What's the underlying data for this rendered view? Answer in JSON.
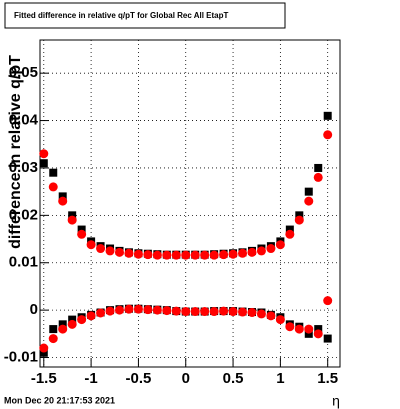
{
  "chart_data": {
    "type": "scatter",
    "title": "Fitted difference in relative q/pT for Global Rec All EtapT",
    "y_label": "difference in relative q/pT",
    "x_label": "η",
    "footer": "Mon Dec 20 21:17:53 2021",
    "xlim": [
      -1.54,
      1.63
    ],
    "ylim": [
      -0.012,
      0.057
    ],
    "xticks": [
      -1.5,
      -1,
      -0.5,
      0,
      0.5,
      1,
      1.5
    ],
    "yticks": [
      -0.01,
      0,
      0.01,
      0.02,
      0.03,
      0.04,
      0.05
    ],
    "grid": true,
    "x": [
      -1.5,
      -1.4,
      -1.3,
      -1.2,
      -1.1,
      -1.0,
      -0.9,
      -0.8,
      -0.7,
      -0.6,
      -0.5,
      -0.4,
      -0.3,
      -0.2,
      -0.1,
      0,
      0.1,
      0.2,
      0.3,
      0.4,
      0.5,
      0.6,
      0.7,
      0.8,
      0.9,
      1.0,
      1.1,
      1.2,
      1.3,
      1.4,
      1.5
    ],
    "series": [
      {
        "color": "#000000",
        "marker": "square",
        "values": [
          0.031,
          0.029,
          0.024,
          0.02,
          0.017,
          0.0145,
          0.0135,
          0.013,
          0.0125,
          0.0122,
          0.012,
          0.0119,
          0.0118,
          0.0117,
          0.0117,
          0.0117,
          0.0117,
          0.0117,
          0.0118,
          0.0119,
          0.012,
          0.0122,
          0.0125,
          0.013,
          0.0135,
          0.0145,
          0.017,
          0.02,
          0.025,
          0.03,
          0.041
        ]
      },
      {
        "color": "#ff0000",
        "marker": "circle",
        "values": [
          0.033,
          0.026,
          0.023,
          0.019,
          0.016,
          0.0138,
          0.013,
          0.0125,
          0.0122,
          0.012,
          0.0118,
          0.0117,
          0.0116,
          0.0116,
          0.0116,
          0.0116,
          0.0116,
          0.0116,
          0.0116,
          0.0117,
          0.0118,
          0.012,
          0.0122,
          0.0125,
          0.013,
          0.0138,
          0.016,
          0.019,
          0.023,
          0.028,
          0.037
        ]
      },
      {
        "color": "#000000",
        "marker": "square",
        "values": [
          -0.009,
          -0.004,
          -0.003,
          -0.002,
          -0.0015,
          -0.001,
          -0.0005,
          0,
          0.0002,
          0.0003,
          0.0003,
          0.0002,
          0.0001,
          0,
          -0.0002,
          -0.0003,
          -0.0003,
          -0.0003,
          -0.0002,
          -0.0002,
          -0.0002,
          -0.0003,
          -0.0004,
          -0.0005,
          -0.001,
          -0.0015,
          -0.003,
          -0.0035,
          -0.005,
          -0.004,
          -0.006
        ]
      },
      {
        "color": "#ff0000",
        "marker": "circle",
        "values": [
          -0.008,
          -0.006,
          -0.004,
          -0.003,
          -0.002,
          -0.0012,
          -0.0006,
          -0.0002,
          0,
          0.0002,
          0.0002,
          0.0001,
          0,
          -0.0001,
          -0.0002,
          -0.0003,
          -0.0003,
          -0.0003,
          -0.0003,
          -0.0002,
          -0.0003,
          -0.0004,
          -0.0005,
          -0.0008,
          -0.0012,
          -0.002,
          -0.0035,
          -0.004,
          -0.004,
          -0.005,
          0.002
        ]
      }
    ]
  }
}
